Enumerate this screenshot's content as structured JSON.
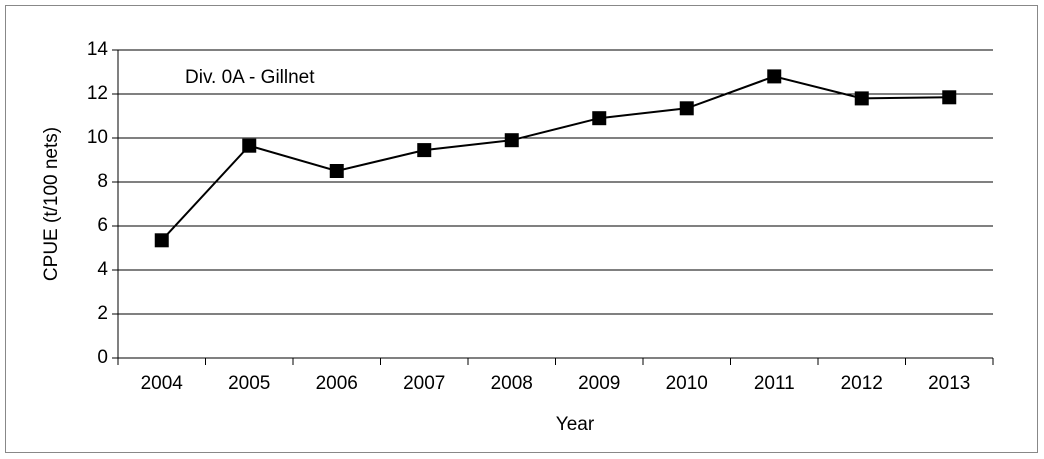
{
  "chart_data": {
    "type": "line",
    "annotation": "Div. 0A - Gillnet",
    "x_label": "Year",
    "y_label": "CPUE (t/100 nets)",
    "categories": [
      "2004",
      "2005",
      "2006",
      "2007",
      "2008",
      "2009",
      "2010",
      "2011",
      "2012",
      "2013"
    ],
    "series": [
      {
        "name": "CPUE",
        "color": "#000000",
        "values": [
          5.35,
          9.65,
          8.5,
          9.45,
          9.9,
          10.9,
          11.35,
          12.8,
          11.8,
          11.85
        ]
      }
    ],
    "ylim": [
      0,
      14
    ],
    "yticks": [
      0,
      2,
      4,
      6,
      8,
      10,
      12,
      14
    ],
    "grid": true
  }
}
